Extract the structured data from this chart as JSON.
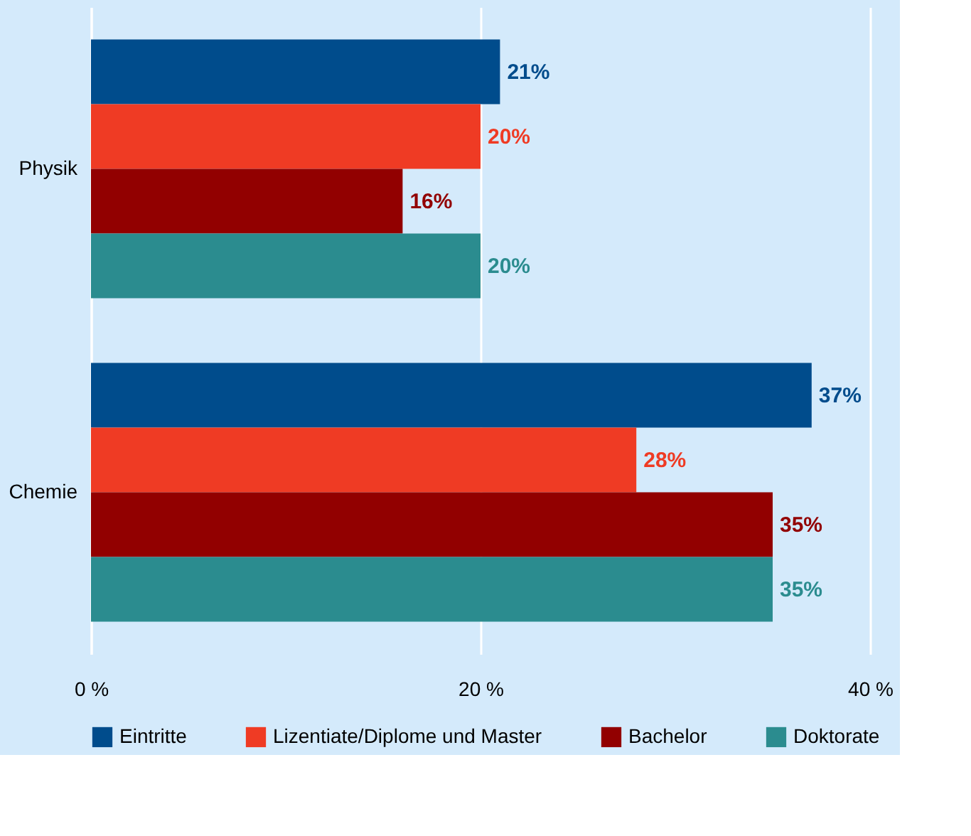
{
  "chart_data": {
    "type": "bar",
    "orientation": "horizontal",
    "categories": [
      "Physik",
      "Chemie"
    ],
    "series": [
      {
        "name": "Eintritte",
        "color": "#004c8c",
        "values": [
          21,
          37
        ],
        "value_labels": [
          "21%",
          "37%"
        ]
      },
      {
        "name": "Lizentiate/Diplome und Master",
        "color": "#ef3b24",
        "values": [
          20,
          28
        ],
        "value_labels": [
          "20%",
          "28%"
        ]
      },
      {
        "name": "Bachelor",
        "color": "#920000",
        "values": [
          16,
          35
        ],
        "value_labels": [
          "16%",
          "35%"
        ]
      },
      {
        "name": "Doktorate",
        "color": "#2b8c8f",
        "values": [
          20,
          35
        ],
        "value_labels": [
          "20%",
          "35%"
        ]
      }
    ],
    "xlim": [
      0,
      40
    ],
    "xticks": [
      {
        "value": 0,
        "label": "0 %"
      },
      {
        "value": 20,
        "label": "20 %"
      },
      {
        "value": 40,
        "label": "40 %"
      }
    ],
    "grid": "x",
    "legend": "bottom"
  }
}
